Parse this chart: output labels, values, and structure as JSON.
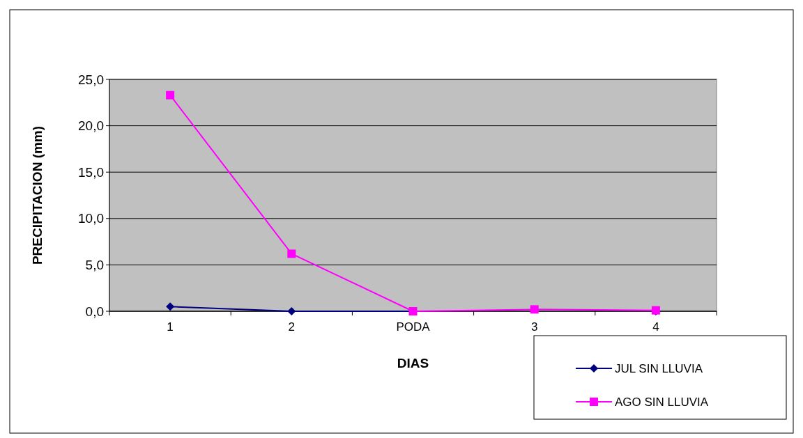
{
  "chart_data": {
    "type": "line",
    "xlabel": "DIAS",
    "ylabel": "PRECIPITACION (mm)",
    "categories": [
      "1",
      "2",
      "PODA",
      "3",
      "4"
    ],
    "series": [
      {
        "name": "JUL SIN LLUVIA",
        "color": "#000080",
        "marker": "diamond",
        "values": [
          0.5,
          0,
          0,
          null,
          0
        ]
      },
      {
        "name": "AGO SIN LLUVIA",
        "color": "#ff00ff",
        "marker": "square",
        "values": [
          23.3,
          6.2,
          0,
          0.2,
          0.1
        ]
      }
    ],
    "ylim": [
      0,
      25
    ],
    "yticks": [
      {
        "value": 0,
        "label": "0,0"
      },
      {
        "value": 5,
        "label": "5,0"
      },
      {
        "value": 10,
        "label": "10,0"
      },
      {
        "value": 15,
        "label": "15,0"
      },
      {
        "value": 20,
        "label": "20,0"
      },
      {
        "value": 25,
        "label": "25,0"
      }
    ],
    "grid": "y",
    "legend": "bottom right"
  }
}
